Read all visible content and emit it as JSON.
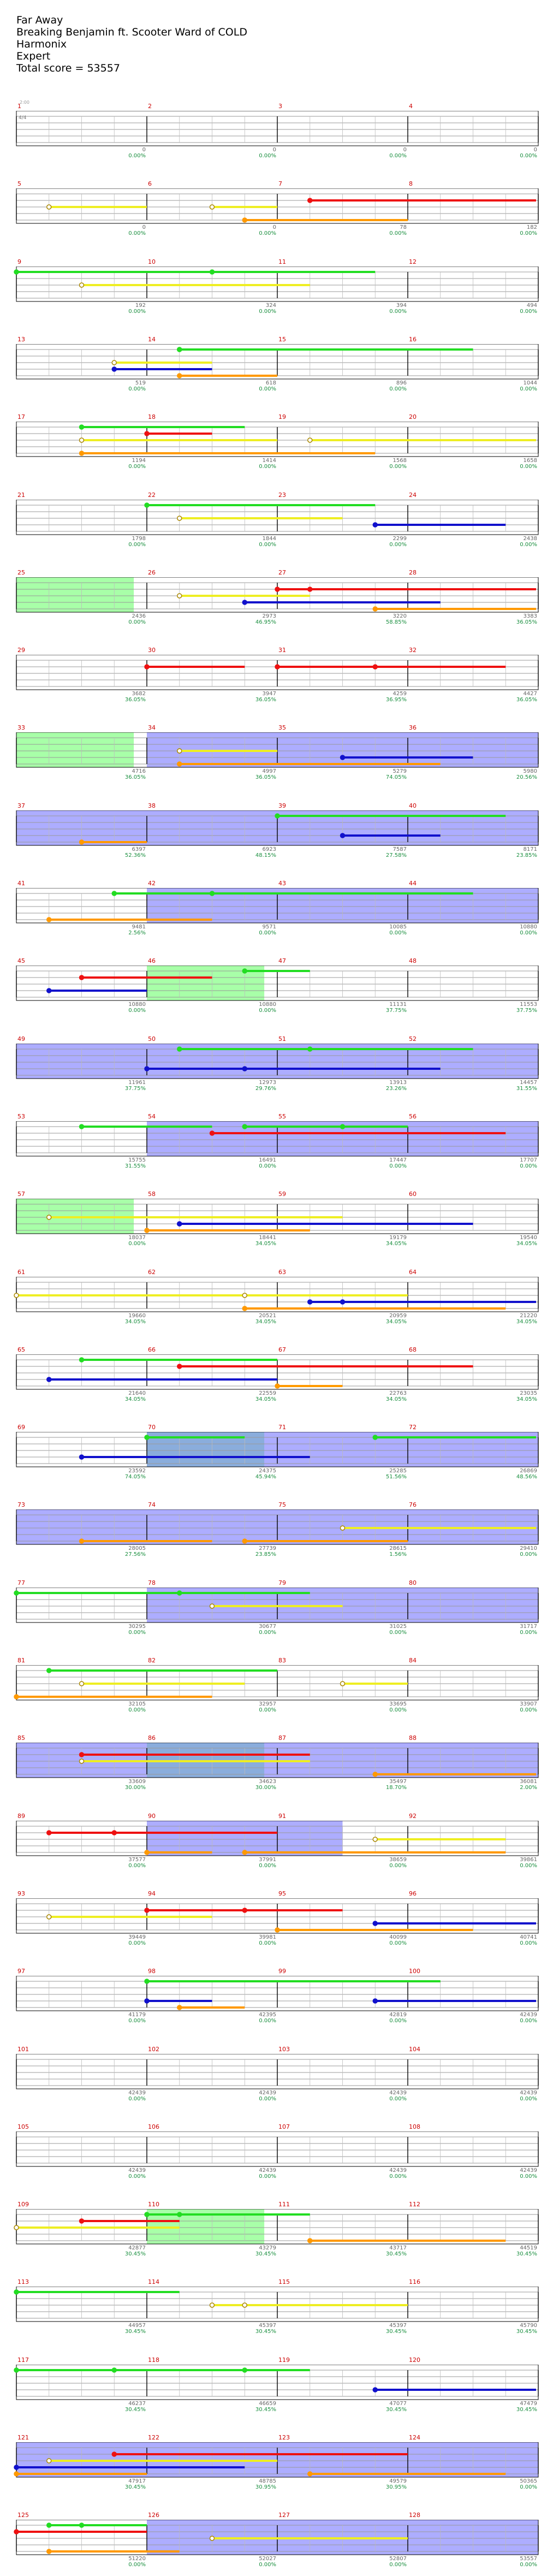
{
  "song": {
    "title": "Far Away",
    "artist": "Breaking Benjamin ft. Scooter Ward of COLD",
    "instrument": "Harmonix",
    "difficulty": "Expert",
    "total_score": "Total score = 53557"
  },
  "start_note": "2:00",
  "time_signature": "4/4",
  "colors": {
    "green": "#22dd22",
    "red": "#ee1111",
    "yellow": "#eeee22",
    "blue": "#1111cc",
    "orange": "#ff9900",
    "overdrive": "#7777ff",
    "solo": "#99ff99"
  },
  "rows": [
    {
      "measures": [
        1,
        2,
        3,
        4
      ],
      "scores": [
        "0",
        "0",
        "0",
        "0"
      ],
      "pcts": [
        "0.00%",
        "0.00%",
        "0.00%",
        "0.00%"
      ]
    },
    {
      "measures": [
        5,
        6,
        7,
        8
      ],
      "scores": [
        "0",
        "0",
        "78",
        "182"
      ],
      "pcts": [
        "0.00%",
        "0.00%",
        "0.00%",
        "0.00%"
      ]
    },
    {
      "measures": [
        9,
        10,
        11,
        12
      ],
      "scores": [
        "192",
        "324",
        "394",
        "494"
      ],
      "pcts": [
        "0.00%",
        "0.00%",
        "0.00%",
        "0.00%"
      ]
    },
    {
      "measures": [
        13,
        14,
        15,
        16
      ],
      "scores": [
        "519",
        "618",
        "896",
        "1044"
      ],
      "pcts": [
        "0.00%",
        "0.00%",
        "0.00%",
        "0.00%"
      ]
    },
    {
      "measures": [
        17,
        18,
        19,
        20
      ],
      "scores": [
        "1194",
        "1414",
        "1568",
        "1658"
      ],
      "pcts": [
        "0.00%",
        "0.00%",
        "0.00%",
        "0.00%"
      ]
    },
    {
      "measures": [
        21,
        22,
        23,
        24
      ],
      "scores": [
        "1798",
        "1844",
        "2299",
        "2438"
      ],
      "pcts": [
        "0.00%",
        "0.00%",
        "0.00%",
        "0.00%"
      ]
    },
    {
      "measures": [
        25,
        26,
        27,
        28
      ],
      "scores": [
        "2436",
        "2973",
        "3220",
        "3383"
      ],
      "pcts": [
        "0.00%",
        "46.95%",
        "58.85%",
        "36.05%"
      ]
    },
    {
      "measures": [
        29,
        30,
        31,
        32
      ],
      "scores": [
        "3682",
        "3947",
        "4259",
        "4427"
      ],
      "pcts": [
        "36.05%",
        "36.05%",
        "36.95%",
        "36.05%"
      ]
    },
    {
      "measures": [
        33,
        34,
        35,
        36
      ],
      "scores": [
        "4716",
        "4997",
        "5279",
        "5980"
      ],
      "pcts": [
        "36.05%",
        "36.05%",
        "74.05%",
        "20.56%"
      ]
    },
    {
      "measures": [
        37,
        38,
        39,
        40
      ],
      "scores": [
        "6397",
        "6923",
        "7587",
        "8171"
      ],
      "pcts": [
        "52.36%",
        "48.15%",
        "27.58%",
        "23.85%"
      ]
    },
    {
      "measures": [
        41,
        42,
        43,
        44
      ],
      "scores": [
        "9481",
        "9571",
        "10085",
        "10880"
      ],
      "pcts": [
        "2.56%",
        "0.00%",
        "0.00%",
        "0.00%"
      ]
    },
    {
      "measures": [
        45,
        46,
        47,
        48
      ],
      "scores": [
        "10880",
        "10880",
        "11131",
        "11553"
      ],
      "pcts": [
        "0.00%",
        "0.00%",
        "37.75%",
        "37.75%"
      ]
    },
    {
      "measures": [
        49,
        50,
        51,
        52
      ],
      "scores": [
        "11961",
        "12973",
        "13913",
        "14457"
      ],
      "pcts": [
        "37.75%",
        "29.76%",
        "23.26%",
        "31.55%"
      ]
    },
    {
      "measures": [
        53,
        54,
        55,
        56
      ],
      "scores": [
        "15755",
        "16491",
        "17447",
        "17707"
      ],
      "pcts": [
        "31.55%",
        "0.00%",
        "0.00%",
        "0.00%"
      ]
    },
    {
      "measures": [
        57,
        58,
        59,
        60
      ],
      "scores": [
        "18037",
        "18441",
        "19179",
        "19540"
      ],
      "pcts": [
        "0.00%",
        "34.05%",
        "34.05%",
        "34.05%"
      ]
    },
    {
      "measures": [
        61,
        62,
        63,
        64
      ],
      "scores": [
        "19660",
        "20521",
        "20959",
        "21220"
      ],
      "pcts": [
        "34.05%",
        "34.05%",
        "34.05%",
        "34.05%"
      ]
    },
    {
      "measures": [
        65,
        66,
        67,
        68
      ],
      "scores": [
        "21640",
        "22559",
        "22763",
        "23035"
      ],
      "pcts": [
        "34.05%",
        "34.05%",
        "34.05%",
        "34.05%"
      ]
    },
    {
      "measures": [
        69,
        70,
        71,
        72
      ],
      "scores": [
        "23592",
        "24375",
        "25285",
        "26869"
      ],
      "pcts": [
        "74.05%",
        "45.94%",
        "51.56%",
        "48.56%"
      ]
    },
    {
      "measures": [
        73,
        74,
        75,
        76
      ],
      "scores": [
        "28005",
        "27739",
        "28615",
        "29410"
      ],
      "pcts": [
        "27.56%",
        "23.85%",
        "1.56%",
        "0.00%"
      ]
    },
    {
      "measures": [
        77,
        78,
        79,
        80
      ],
      "scores": [
        "30295",
        "30677",
        "31025",
        "31717"
      ],
      "pcts": [
        "0.00%",
        "0.00%",
        "0.00%",
        "0.00%"
      ]
    },
    {
      "measures": [
        81,
        82,
        83,
        84
      ],
      "scores": [
        "32105",
        "32957",
        "33695",
        "33907"
      ],
      "pcts": [
        "0.00%",
        "0.00%",
        "0.00%",
        "0.00%"
      ]
    },
    {
      "measures": [
        85,
        86,
        87,
        88
      ],
      "scores": [
        "33609",
        "34623",
        "35497",
        "36081"
      ],
      "pcts": [
        "30.00%",
        "30.00%",
        "18.70%",
        "2.00%"
      ]
    },
    {
      "measures": [
        89,
        90,
        91,
        92
      ],
      "scores": [
        "37577",
        "37991",
        "38659",
        "39861"
      ],
      "pcts": [
        "0.00%",
        "0.00%",
        "0.00%",
        "0.00%"
      ]
    },
    {
      "measures": [
        93,
        94,
        95,
        96
      ],
      "scores": [
        "39449",
        "39981",
        "40099",
        "40741"
      ],
      "pcts": [
        "0.00%",
        "0.00%",
        "0.00%",
        "0.00%"
      ]
    },
    {
      "measures": [
        97,
        98,
        99,
        100
      ],
      "scores": [
        "41179",
        "42395",
        "42819",
        "42439"
      ],
      "pcts": [
        "0.00%",
        "0.00%",
        "0.00%",
        "0.00%"
      ]
    },
    {
      "measures": [
        101,
        102,
        103,
        104
      ],
      "scores": [
        "42439",
        "42439",
        "42439",
        "42439"
      ],
      "pcts": [
        "0.00%",
        "0.00%",
        "0.00%",
        "0.00%"
      ]
    },
    {
      "measures": [
        105,
        106,
        107,
        108
      ],
      "scores": [
        "42439",
        "42439",
        "42439",
        "42439"
      ],
      "pcts": [
        "0.00%",
        "0.00%",
        "0.00%",
        "0.00%"
      ]
    },
    {
      "measures": [
        109,
        110,
        111,
        112
      ],
      "scores": [
        "42877",
        "43279",
        "43717",
        "44519"
      ],
      "pcts": [
        "30.45%",
        "30.45%",
        "30.45%",
        "30.45%"
      ]
    },
    {
      "measures": [
        113,
        114,
        115,
        116
      ],
      "scores": [
        "44957",
        "45397",
        "45397",
        "45790"
      ],
      "pcts": [
        "30.45%",
        "30.45%",
        "30.45%",
        "30.45%"
      ]
    },
    {
      "measures": [
        117,
        118,
        119,
        120
      ],
      "scores": [
        "46237",
        "46659",
        "47077",
        "47479"
      ],
      "pcts": [
        "30.45%",
        "30.45%",
        "30.45%",
        "30.45%"
      ]
    },
    {
      "measures": [
        121,
        122,
        123,
        124
      ],
      "scores": [
        "47917",
        "48785",
        "49579",
        "50365"
      ],
      "pcts": [
        "30.45%",
        "30.95%",
        "30.95%",
        "0.00%"
      ]
    },
    {
      "measures": [
        125,
        126,
        127,
        128
      ],
      "scores": [
        "51220",
        "52027",
        "52807",
        "53557"
      ],
      "pcts": [
        "0.00%",
        "0.00%",
        "0.00%",
        "0.00%"
      ]
    }
  ]
}
